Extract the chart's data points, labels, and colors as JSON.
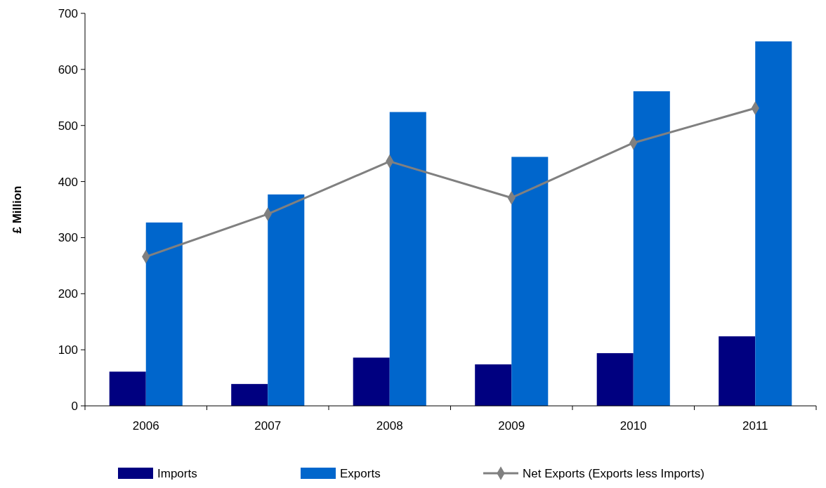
{
  "chart_data": {
    "type": "bar",
    "ylabel": "£ Million",
    "categories": [
      "2006",
      "2007",
      "2008",
      "2009",
      "2010",
      "2011"
    ],
    "series": [
      {
        "name": "Imports",
        "color": "#000080",
        "values": [
          61,
          39,
          86,
          74,
          94,
          124
        ]
      },
      {
        "name": "Exports",
        "color": "#0066cc",
        "values": [
          327,
          377,
          524,
          444,
          561,
          650
        ]
      },
      {
        "name": "Net Exports (Exports less Imports)",
        "type": "line",
        "color": "#808080",
        "marker": "diamond",
        "values": [
          266,
          342,
          436,
          371,
          469,
          531
        ]
      }
    ],
    "ylim": [
      0,
      700
    ],
    "yticks": [
      0,
      100,
      200,
      300,
      400,
      500,
      600,
      700
    ],
    "grid": false,
    "legend": "bottom"
  }
}
